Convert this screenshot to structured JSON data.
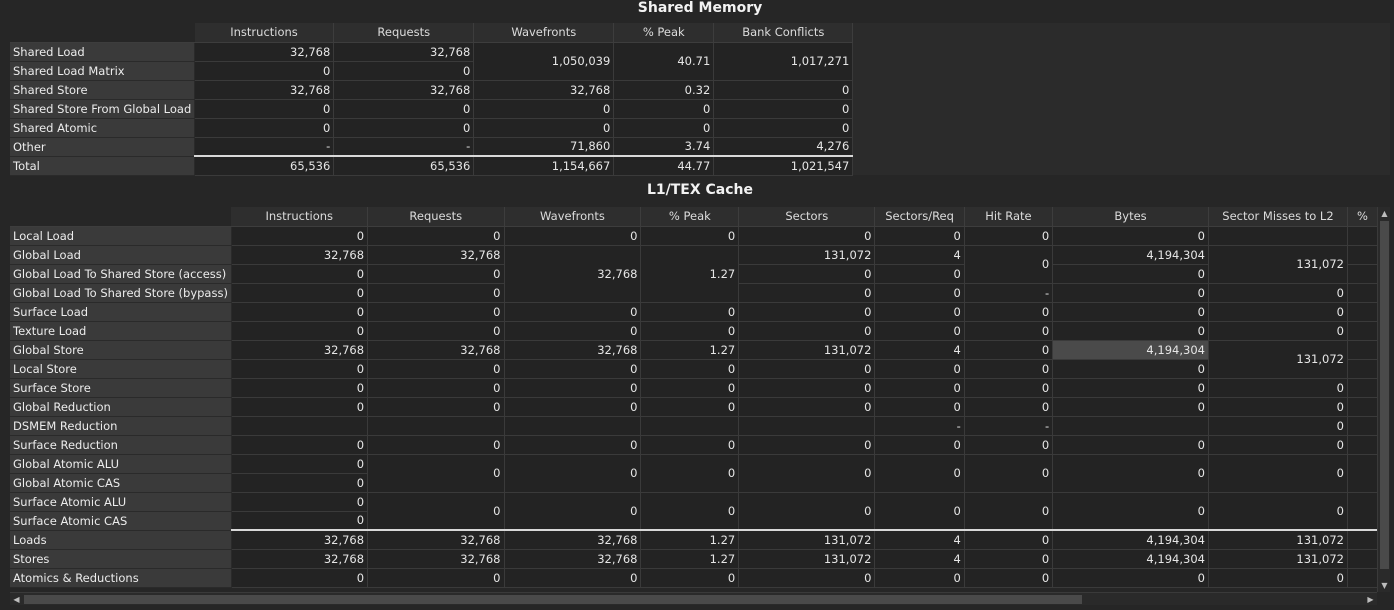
{
  "shared_memory": {
    "title": "Shared Memory",
    "columns": [
      "Instructions",
      "Requests",
      "Wavefronts",
      "% Peak",
      "Bank Conflicts"
    ],
    "rows": [
      {
        "label": "Shared Load",
        "instructions": "32,768",
        "requests": "32,768"
      },
      {
        "label": "Shared Load Matrix",
        "instructions": "0",
        "requests": "0"
      },
      {
        "label": "Shared Store",
        "instructions": "32,768",
        "requests": "32,768"
      },
      {
        "label": "Shared Store From Global Load",
        "instructions": "0",
        "requests": "0"
      },
      {
        "label": "Shared Atomic",
        "instructions": "0",
        "requests": "0"
      },
      {
        "label": "Other",
        "instructions": "-",
        "requests": "-"
      },
      {
        "label": "Total",
        "instructions": "65,536",
        "requests": "65,536"
      }
    ],
    "load_merged": {
      "wavefronts": "1,050,039",
      "peak": "40.71",
      "bank_conflicts": "1,017,271"
    },
    "store": {
      "wavefronts": "32,768",
      "peak": "0.32",
      "bank_conflicts": "0"
    },
    "store_from_global": {
      "wavefronts": "0",
      "peak": "0",
      "bank_conflicts": "0"
    },
    "atomic": {
      "wavefronts": "0",
      "peak": "0",
      "bank_conflicts": "0"
    },
    "other": {
      "wavefronts": "71,860",
      "peak": "3.74",
      "bank_conflicts": "4,276"
    },
    "total": {
      "wavefronts": "1,154,667",
      "peak": "44.77",
      "bank_conflicts": "1,021,547"
    }
  },
  "l1tex": {
    "title": "L1/TEX Cache",
    "columns": [
      "Instructions",
      "Requests",
      "Wavefronts",
      "% Peak",
      "Sectors",
      "Sectors/Req",
      "Hit Rate",
      "Bytes",
      "Sector Misses to L2",
      "%"
    ],
    "rows": [
      {
        "label": "Local Load",
        "instructions": "0",
        "requests": "0",
        "wavefronts": "0",
        "peak": "0",
        "sectors": "0",
        "sectors_req": "0",
        "hit_rate": "0",
        "bytes": "0",
        "misses": ""
      },
      {
        "label": "Global Load",
        "instructions": "32,768",
        "requests": "32,768",
        "sectors": "131,072",
        "sectors_req": "4",
        "bytes": "4,194,304",
        "misses": "131,072"
      },
      {
        "label": "Global Load To Shared Store (access)",
        "instructions": "0",
        "requests": "0",
        "sectors": "0",
        "sectors_req": "0",
        "bytes": "0",
        "misses": ""
      },
      {
        "label": "Global Load To Shared Store (bypass)",
        "instructions": "0",
        "requests": "0",
        "sectors": "0",
        "sectors_req": "0",
        "hit_rate": "-",
        "bytes": "0",
        "misses": "0"
      },
      {
        "label": "Surface Load",
        "instructions": "0",
        "requests": "0",
        "wavefronts": "0",
        "peak": "0",
        "sectors": "0",
        "sectors_req": "0",
        "hit_rate": "0",
        "bytes": "0",
        "misses": "0"
      },
      {
        "label": "Texture Load",
        "instructions": "0",
        "requests": "0",
        "wavefronts": "0",
        "peak": "0",
        "sectors": "0",
        "sectors_req": "0",
        "hit_rate": "0",
        "bytes": "0",
        "misses": "0"
      },
      {
        "label": "Global Store",
        "instructions": "32,768",
        "requests": "32,768",
        "wavefronts": "32,768",
        "peak": "1.27",
        "sectors": "131,072",
        "sectors_req": "4",
        "hit_rate": "0",
        "bytes": "4,194,304"
      },
      {
        "label": "Local Store",
        "instructions": "0",
        "requests": "0",
        "wavefronts": "0",
        "peak": "0",
        "sectors": "0",
        "sectors_req": "0",
        "hit_rate": "0",
        "bytes": "0"
      },
      {
        "label": "Surface Store",
        "instructions": "0",
        "requests": "0",
        "wavefronts": "0",
        "peak": "0",
        "sectors": "0",
        "sectors_req": "0",
        "hit_rate": "0",
        "bytes": "0",
        "misses": "0"
      },
      {
        "label": "Global Reduction",
        "instructions": "0",
        "requests": "0",
        "wavefronts": "0",
        "peak": "0",
        "sectors": "0",
        "sectors_req": "0",
        "hit_rate": "0",
        "bytes": "0",
        "misses": "0"
      },
      {
        "label": "DSMEM Reduction",
        "instructions": "",
        "requests": "",
        "wavefronts": "",
        "peak": "",
        "sectors": "",
        "sectors_req": "-",
        "hit_rate": "-",
        "bytes": "",
        "misses": "0"
      },
      {
        "label": "Surface Reduction",
        "instructions": "0",
        "requests": "0",
        "wavefronts": "0",
        "peak": "0",
        "sectors": "0",
        "sectors_req": "0",
        "hit_rate": "0",
        "bytes": "0",
        "misses": "0"
      },
      {
        "label": "Global Atomic ALU",
        "instructions": "0"
      },
      {
        "label": "Global Atomic CAS",
        "instructions": "0"
      },
      {
        "label": "Surface Atomic ALU",
        "instructions": "0"
      },
      {
        "label": "Surface Atomic CAS",
        "instructions": "0"
      },
      {
        "label": "Loads",
        "instructions": "32,768",
        "requests": "32,768",
        "wavefronts": "32,768",
        "peak": "1.27",
        "sectors": "131,072",
        "sectors_req": "4",
        "hit_rate": "0",
        "bytes": "4,194,304",
        "misses": "131,072"
      },
      {
        "label": "Stores",
        "instructions": "32,768",
        "requests": "32,768",
        "wavefronts": "32,768",
        "peak": "1.27",
        "sectors": "131,072",
        "sectors_req": "4",
        "hit_rate": "0",
        "bytes": "4,194,304",
        "misses": "131,072"
      },
      {
        "label": "Atomics & Reductions",
        "instructions": "0",
        "requests": "0",
        "wavefronts": "0",
        "peak": "0",
        "sectors": "0",
        "sectors_req": "0",
        "hit_rate": "0",
        "bytes": "0",
        "misses": "0"
      }
    ],
    "merged": {
      "gl_wavefronts": "32,768",
      "gl_peak": "1.27",
      "gl_hit_rate": "0",
      "gs_misses": "131,072",
      "ga_requests": "0",
      "ga_wavefronts": "0",
      "ga_peak": "0",
      "ga_sectors": "0",
      "ga_sectors_req": "0",
      "ga_hit_rate": "0",
      "ga_bytes": "0",
      "ga_misses": "0",
      "sa_requests": "0",
      "sa_wavefronts": "0",
      "sa_peak": "0",
      "sa_sectors": "0",
      "sa_sectors_req": "0",
      "sa_hit_rate": "0",
      "sa_bytes": "0",
      "sa_misses": "0"
    }
  },
  "scrollbars": {
    "up_arrow": "▲",
    "down_arrow": "▼",
    "left_arrow": "◀",
    "right_arrow": "▶"
  }
}
